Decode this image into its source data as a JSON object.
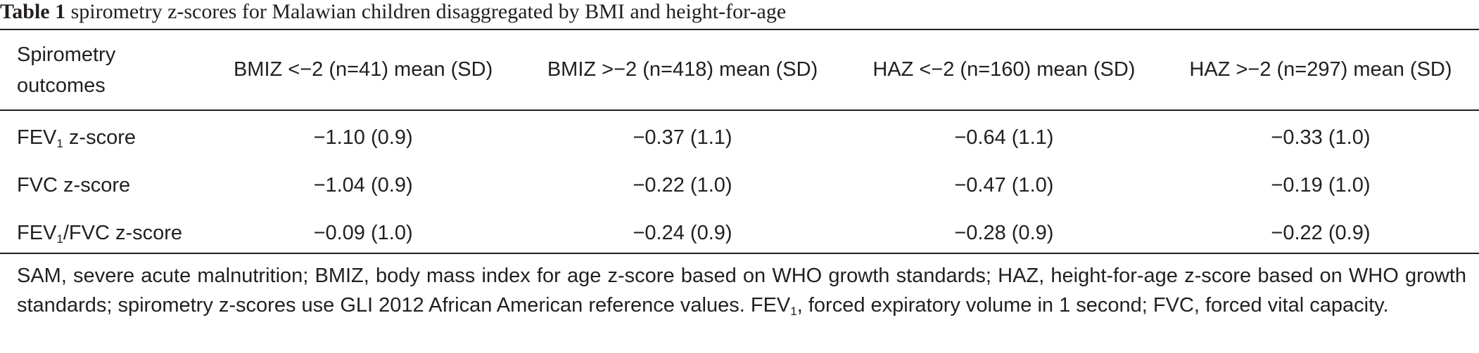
{
  "caption": {
    "label": "Table 1",
    "text": " spirometry z-scores for Malawian children disaggregated by BMI and height-for-age"
  },
  "table": {
    "columns": [
      "Spirometry outcomes",
      "BMIZ <−2 (n=41) mean (SD)",
      "BMIZ >−2 (n=418) mean (SD)",
      "HAZ <−2 (n=160) mean (SD)",
      "HAZ >−2 (n=297) mean (SD)"
    ],
    "rows": [
      {
        "outcome": {
          "pre": "FEV",
          "sub": "1",
          "post": " z-score"
        },
        "values": [
          "−1.10 (0.9)",
          "−0.37 (1.1)",
          "−0.64 (1.1)",
          "−0.33 (1.0)"
        ]
      },
      {
        "outcome": {
          "pre": "FVC z-score",
          "sub": "",
          "post": ""
        },
        "values": [
          "−1.04 (0.9)",
          "−0.22 (1.0)",
          "−0.47 (1.0)",
          "−0.19 (1.0)"
        ]
      },
      {
        "outcome": {
          "pre": "FEV",
          "sub": "1",
          "post": "/FVC z-score"
        },
        "values": [
          "−0.09 (1.0)",
          "−0.24 (0.9)",
          "−0.28 (0.9)",
          "−0.22 (0.9)"
        ]
      }
    ]
  },
  "footnote": {
    "part1": "SAM, severe acute malnutrition; BMIZ, body mass index for age z-score based on WHO growth standards; HAZ, height-for-age z-score based on WHO growth standards; spirometry z-scores use GLI 2012 African American reference values. FEV",
    "sub": "1",
    "part2": ", forced expiratory volume in 1 second; FVC, forced vital capacity."
  }
}
